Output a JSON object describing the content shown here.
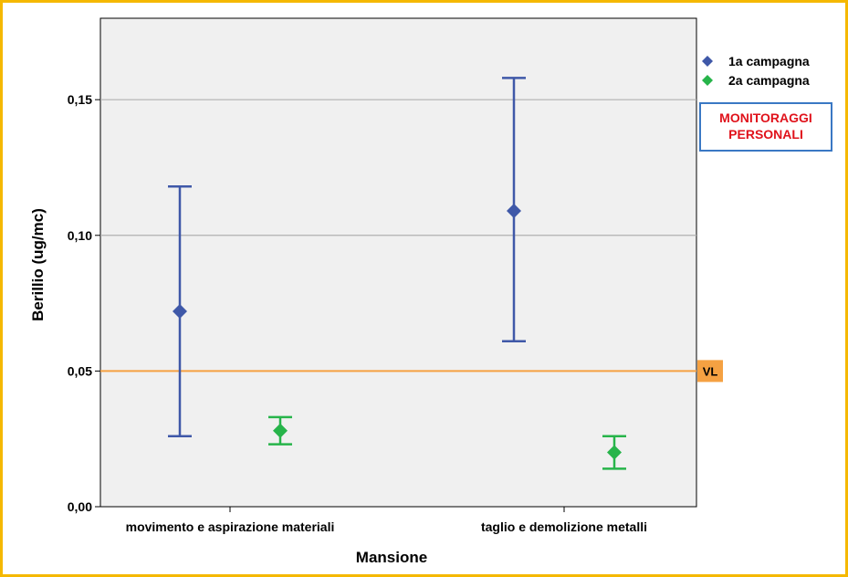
{
  "chart_data": {
    "type": "errorbar",
    "xlabel": "Mansione",
    "ylabel": "Berillio (ug/mc)",
    "ylim": [
      0,
      0.18
    ],
    "yticks": [
      {
        "value": 0.0,
        "label": "0,00"
      },
      {
        "value": 0.05,
        "label": "0,05"
      },
      {
        "value": 0.1,
        "label": "0,10"
      },
      {
        "value": 0.15,
        "label": "0,15"
      }
    ],
    "grid_lines": [
      0.1,
      0.15
    ],
    "categories": [
      "movimento e aspirazione materiali",
      "taglio e demolizione metalli"
    ],
    "series": [
      {
        "name": "1a campagna",
        "color": "#3f58a8",
        "marker": "diamond",
        "points": [
          {
            "category": 0,
            "mean": 0.072,
            "low": 0.026,
            "high": 0.118
          },
          {
            "category": 1,
            "mean": 0.109,
            "low": 0.061,
            "high": 0.158
          }
        ]
      },
      {
        "name": "2a campagna",
        "color": "#27b44a",
        "marker": "diamond",
        "points": [
          {
            "category": 0,
            "mean": 0.028,
            "low": 0.023,
            "high": 0.033
          },
          {
            "category": 1,
            "mean": 0.02,
            "low": 0.014,
            "high": 0.026
          }
        ]
      }
    ],
    "reference_line": {
      "value": 0.05,
      "label": "VL",
      "color": "#f5a142"
    },
    "legend": {
      "position": "top-right"
    },
    "annotation": {
      "lines": [
        "MONITORAGGI",
        "PERSONALI"
      ],
      "color": "#e0121b",
      "border": "#3a78c4"
    }
  }
}
